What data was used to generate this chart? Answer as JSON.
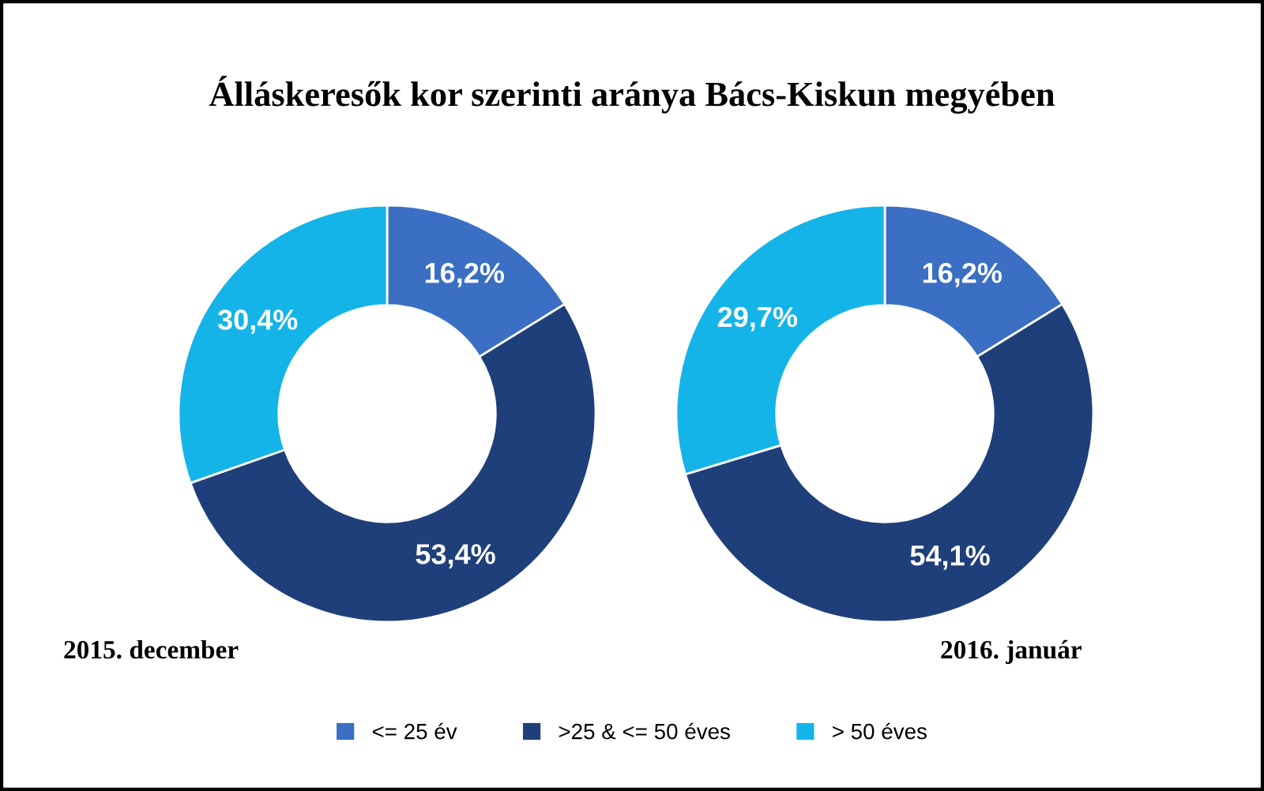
{
  "chart_data": [
    {
      "type": "donut",
      "title": "Álláskeresők kor szerinti aránya Bács-Kiskun megyében",
      "categories": [
        "<= 25 év",
        ">25 & <= 50 éves",
        "> 50 éves"
      ],
      "values": [
        16.2,
        53.4,
        30.4
      ],
      "colors": [
        "#3a6fc4",
        "#1f3f7a",
        "#14b4e8"
      ],
      "value_labels": [
        "16,2%",
        "53,4%",
        "30,4%"
      ],
      "annotations": [
        "2015. december"
      ],
      "legend": "bottom"
    },
    {
      "type": "donut",
      "categories": [
        null,
        null,
        null
      ],
      "values": [
        16.2,
        54.1,
        29.7
      ],
      "colors": [
        "#3a6fc4",
        "#1f3f7a",
        "#14b4e8"
      ],
      "value_labels": [
        "16,2%",
        "54,1%",
        "29,7%"
      ],
      "annotations": [
        "2016. január"
      ]
    }
  ]
}
